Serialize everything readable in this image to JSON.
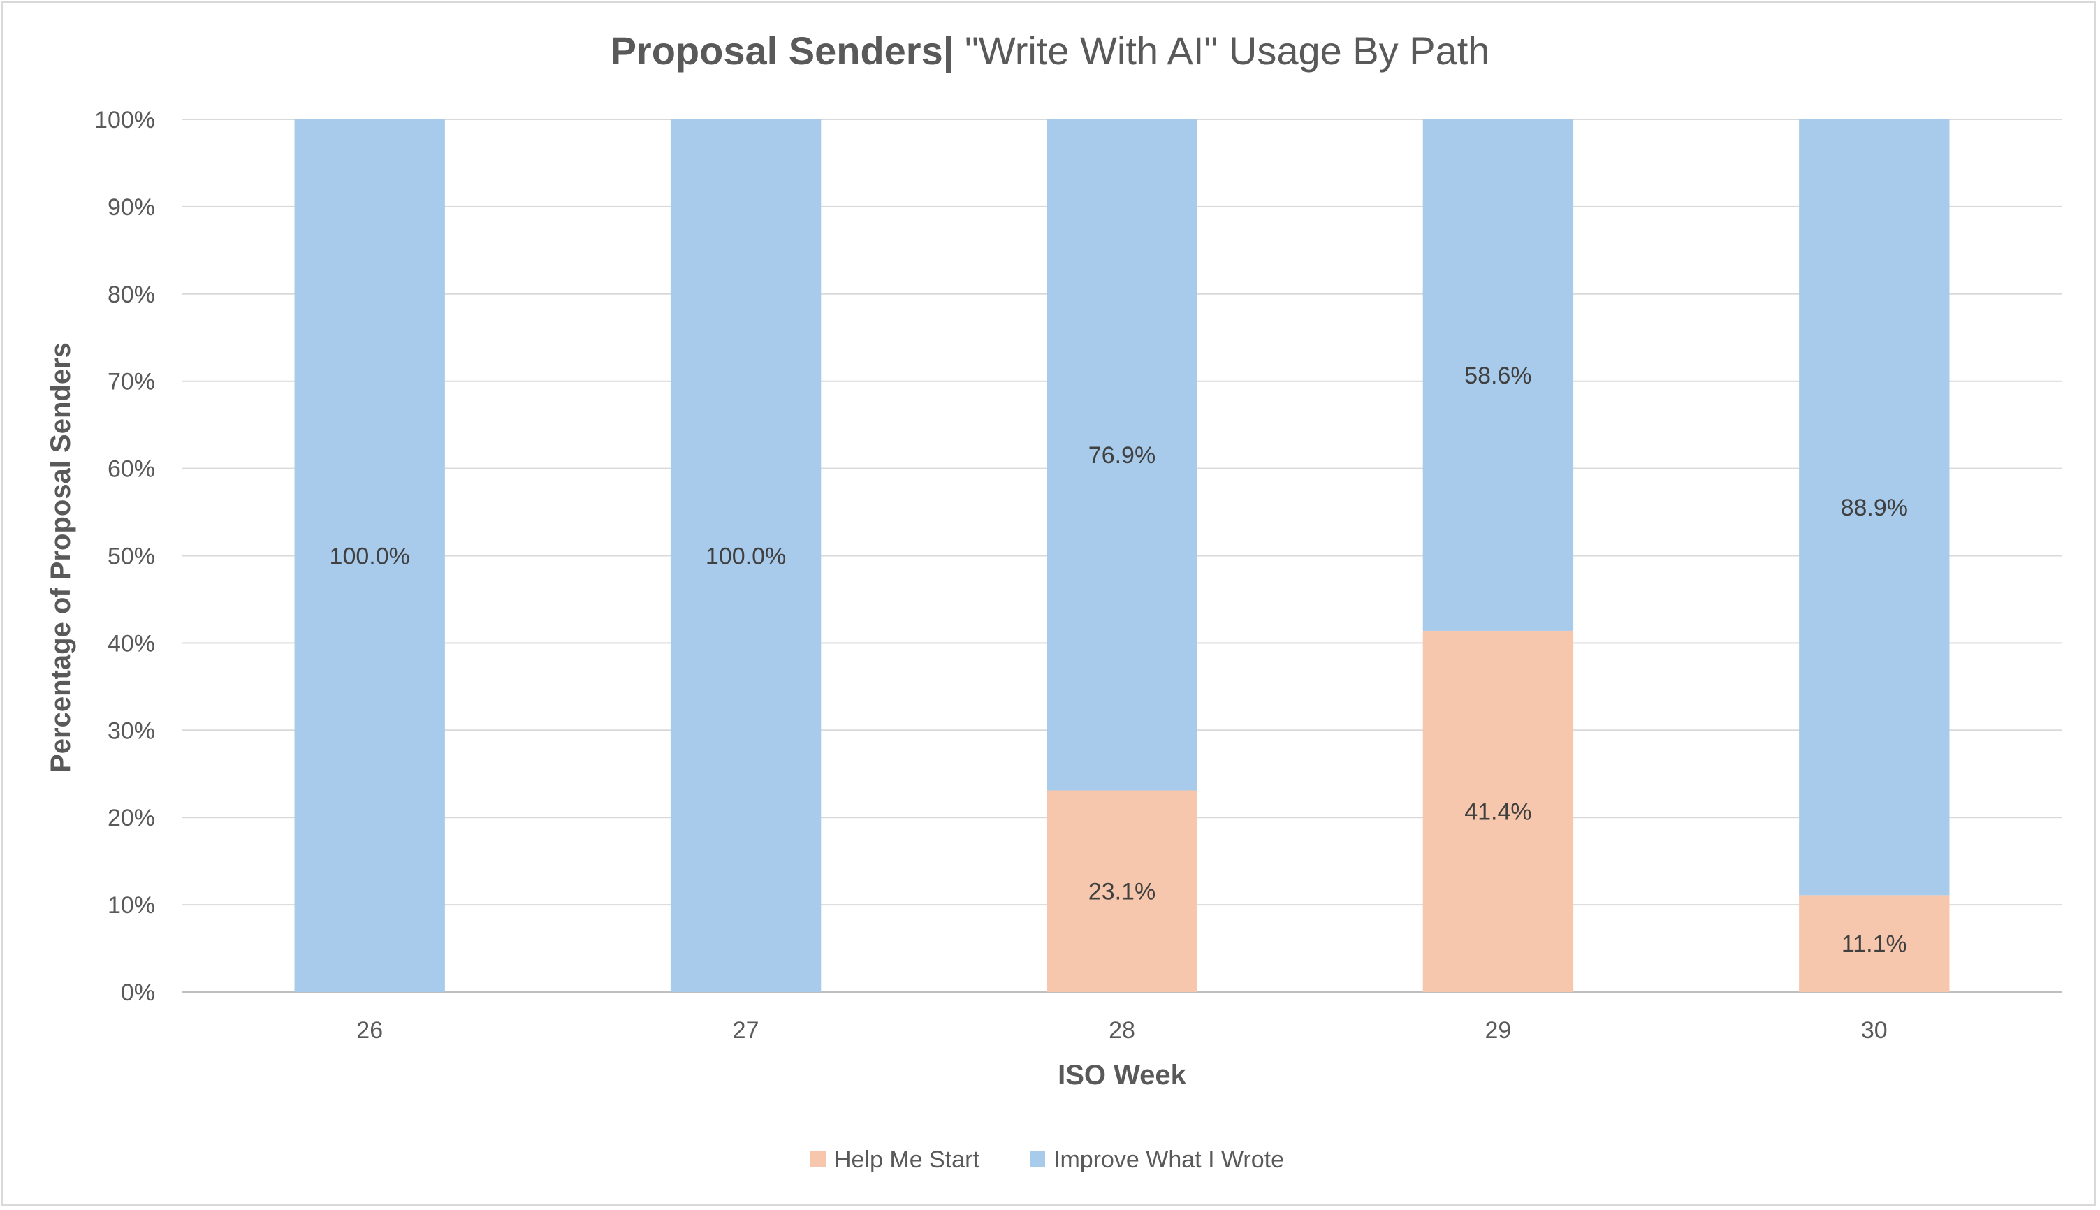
{
  "chart_data": {
    "type": "bar",
    "stacked": true,
    "title_bold": "Proposal Senders|",
    "title_rest": " \"Write With AI\" Usage By Path",
    "xlabel": "ISO Week",
    "ylabel": "Percentage of Proposal Senders",
    "ylim": [
      0,
      100
    ],
    "yticks": [
      "0%",
      "10%",
      "20%",
      "30%",
      "40%",
      "50%",
      "60%",
      "70%",
      "80%",
      "90%",
      "100%"
    ],
    "categories": [
      "26",
      "27",
      "28",
      "29",
      "30"
    ],
    "series": [
      {
        "name": "Help Me Start",
        "color": "#f6c6ad",
        "values": [
          0,
          0,
          23.1,
          41.4,
          11.1
        ],
        "labels": [
          "",
          "",
          "23.1%",
          "41.4%",
          "11.1%"
        ]
      },
      {
        "name": "Improve What I Wrote",
        "color": "#a8cbeb",
        "values": [
          100.0,
          100.0,
          76.9,
          58.6,
          88.9
        ],
        "labels": [
          "100.0%",
          "100.0%",
          "76.9%",
          "58.6%",
          "88.9%"
        ]
      }
    ],
    "grid": true,
    "legend_position": "bottom"
  }
}
